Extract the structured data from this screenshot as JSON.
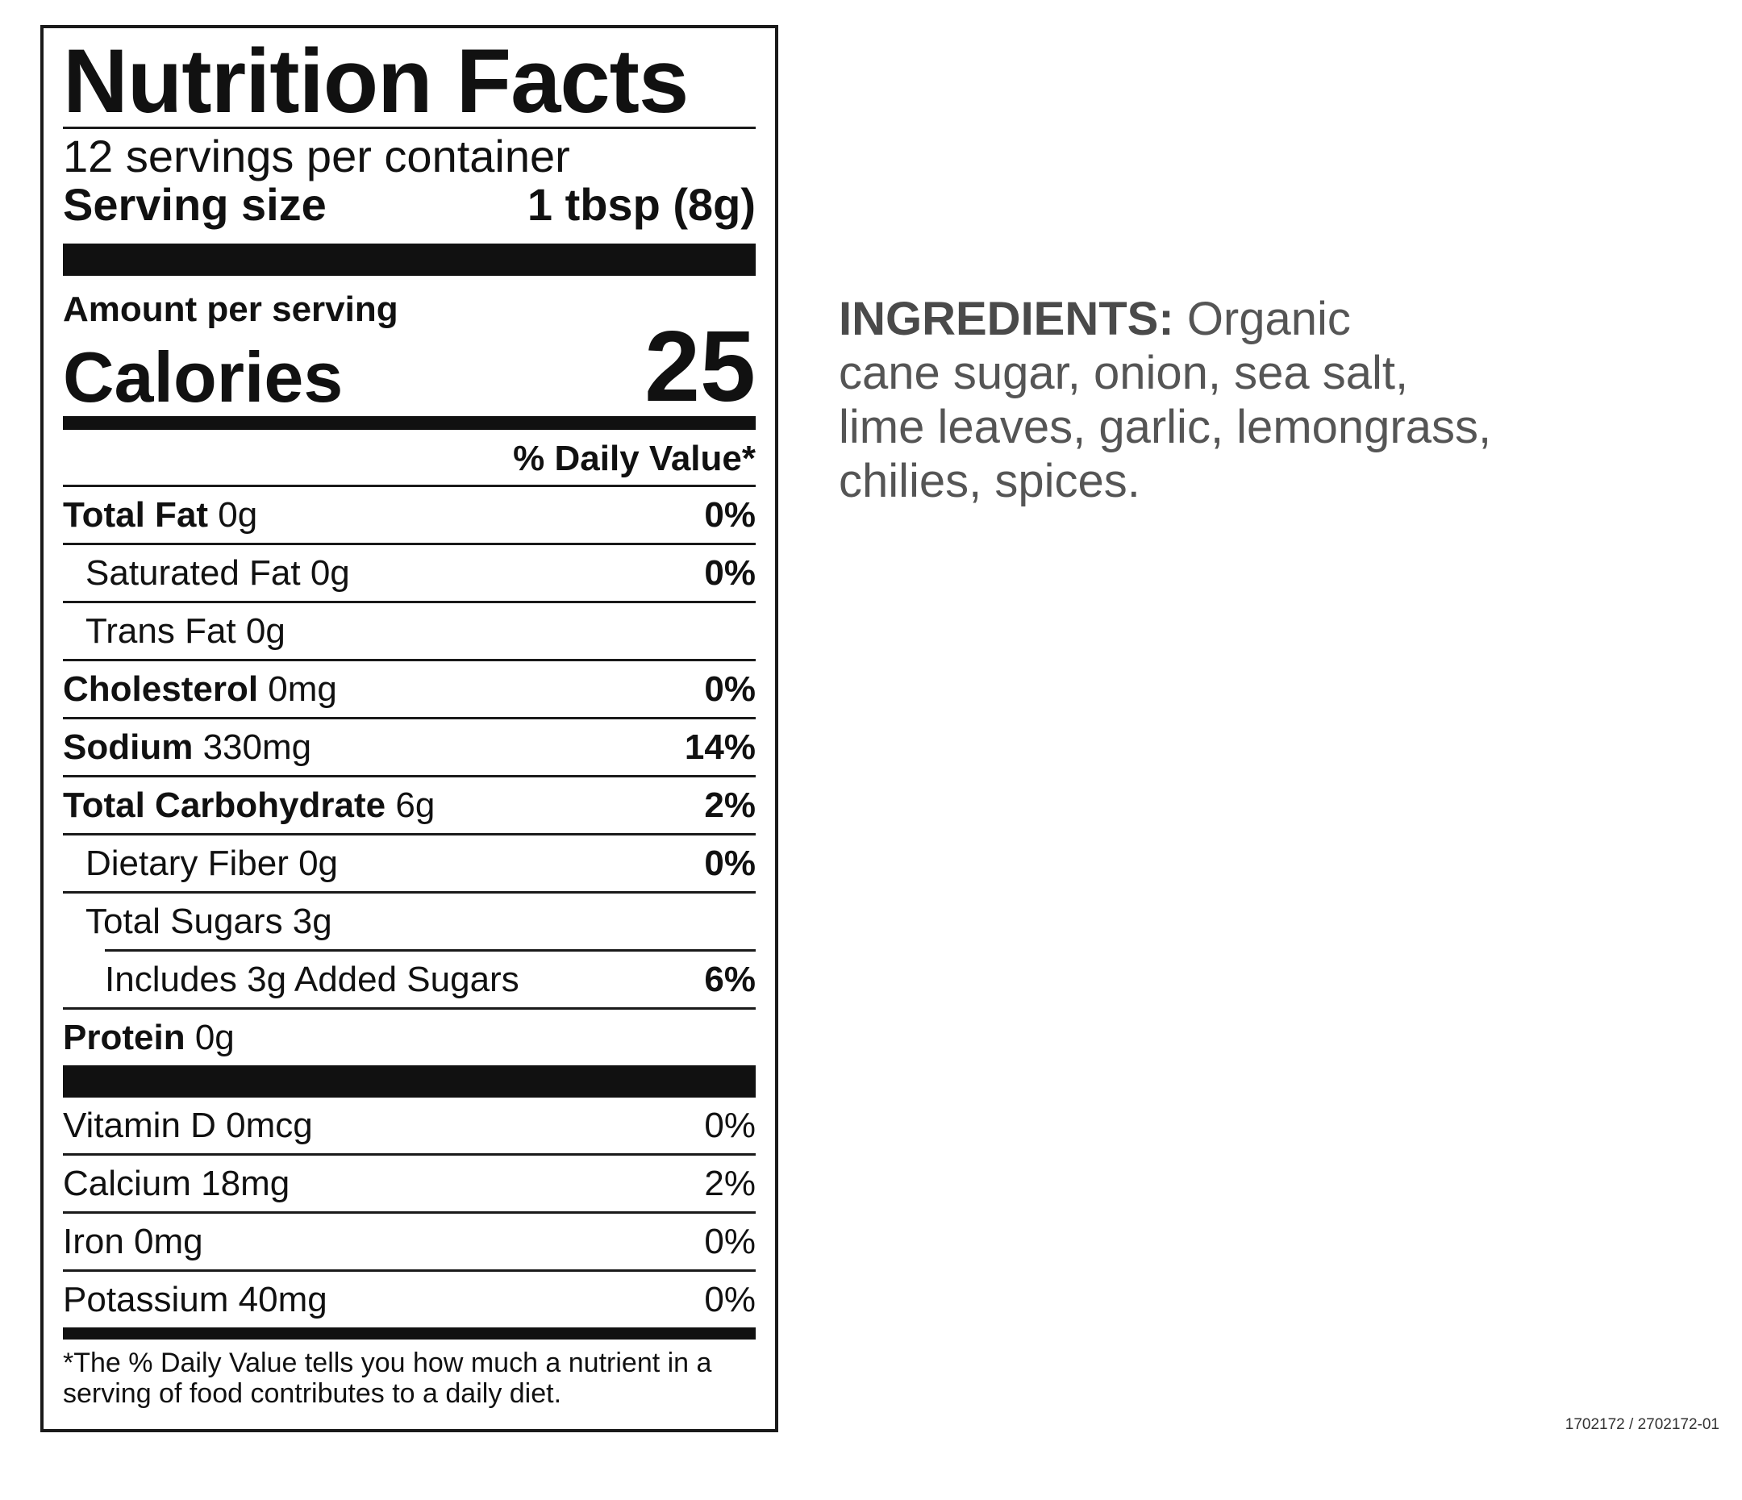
{
  "label": {
    "title": "Nutrition Facts",
    "servings_per_container": "12 servings per container",
    "serving_size_label": "Serving size",
    "serving_size_value": "1 tbsp (8g)",
    "amount_per_serving": "Amount per serving",
    "calories_label": "Calories",
    "calories_value": "25",
    "daily_value_header": "% Daily Value*",
    "nutrients": [
      {
        "name": "Total Fat",
        "amount": "0g",
        "dv": "0%"
      },
      {
        "name": "Saturated Fat 0g",
        "amount": "",
        "dv": "0%"
      },
      {
        "name": "Trans Fat 0g",
        "amount": "",
        "dv": ""
      },
      {
        "name": "Cholesterol",
        "amount": "0mg",
        "dv": "0%"
      },
      {
        "name": "Sodium",
        "amount": "330mg",
        "dv": "14%"
      },
      {
        "name": "Total Carbohydrate",
        "amount": "6g",
        "dv": "2%"
      },
      {
        "name": "Dietary Fiber 0g",
        "amount": "",
        "dv": "0%"
      },
      {
        "name": "Total Sugars 3g",
        "amount": "",
        "dv": ""
      },
      {
        "name": "Includes 3g Added Sugars",
        "amount": "",
        "dv": "6%"
      },
      {
        "name": "Protein",
        "amount": "0g",
        "dv": ""
      }
    ],
    "vitamins": [
      {
        "name": "Vitamin D 0mcg",
        "dv": "0%"
      },
      {
        "name": "Calcium 18mg",
        "dv": "2%"
      },
      {
        "name": "Iron 0mg",
        "dv": "0%"
      },
      {
        "name": "Potassium 40mg",
        "dv": "0%"
      }
    ],
    "footnote": "*The % Daily Value tells you how much a nutrient in a serving of food contributes to a daily diet."
  },
  "ingredients": {
    "heading": "INGREDIENTS:",
    "line1": "Organic",
    "line2": "cane sugar, onion, sea salt,",
    "line3": "lime leaves, garlic, lemongrass,",
    "line4": "chilies, spices."
  },
  "product_code": "1702172 / 2702172-01"
}
